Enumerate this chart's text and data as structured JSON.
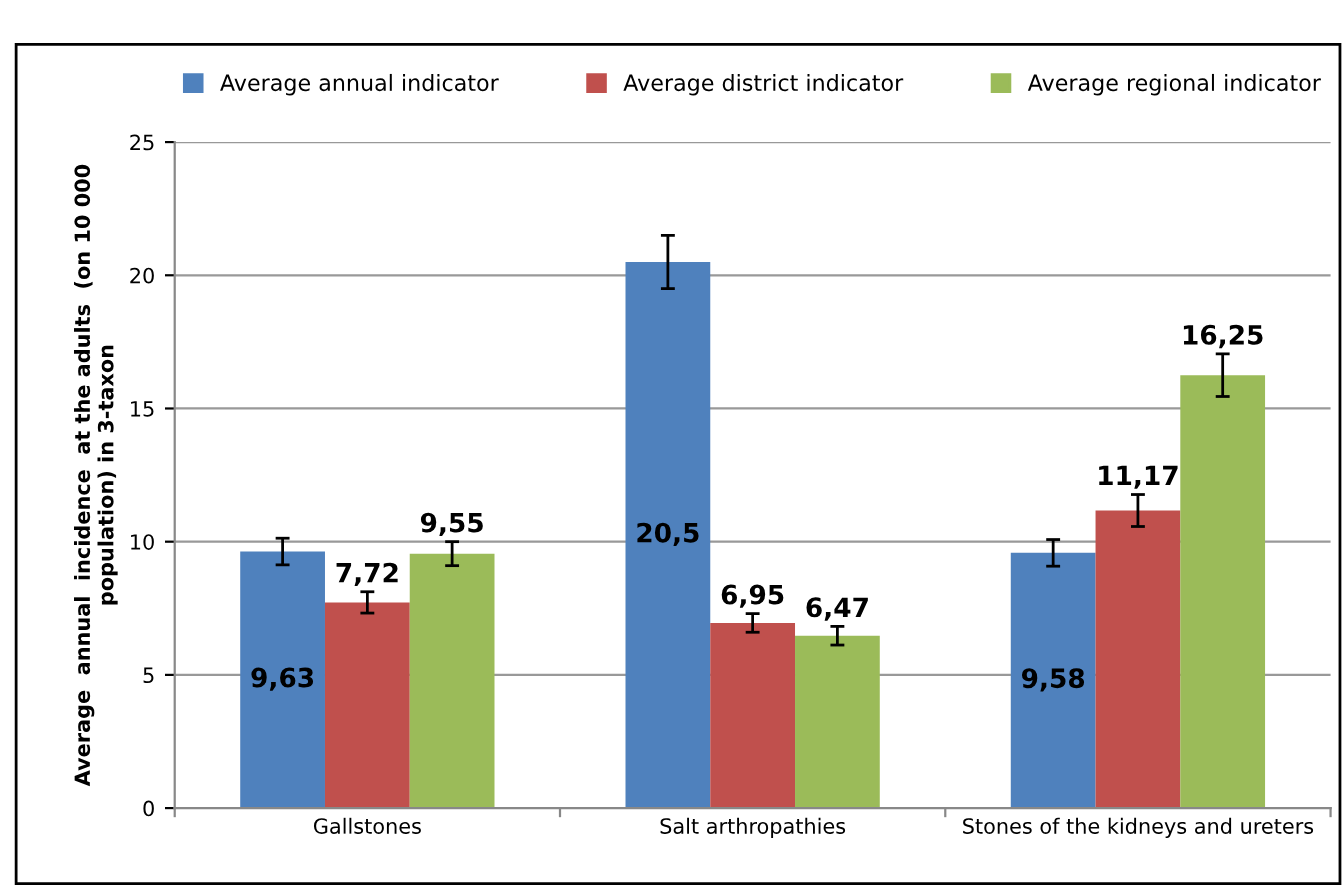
{
  "chart_data": {
    "type": "bar",
    "ylabel": "Average  annual  incidence  at the adults  (on 10 000\npopulation) in 3-taxon",
    "categories": [
      "Gallstones",
      "Salt arthropathies",
      "Stones of the kidneys and ureters"
    ],
    "series": [
      {
        "name": "Average annual indicator",
        "color": "#4f81bd",
        "values": [
          9.63,
          20.5,
          9.58
        ],
        "value_labels": [
          "9,63",
          "20,5",
          "9,58"
        ],
        "errors": [
          0.5,
          1.0,
          0.5
        ]
      },
      {
        "name": "Average district indicator",
        "color": "#c0504d",
        "values": [
          7.72,
          6.95,
          11.17
        ],
        "value_labels": [
          "7,72",
          "6,95",
          "11,17"
        ],
        "errors": [
          0.4,
          0.35,
          0.6
        ]
      },
      {
        "name": "Average regional indicator",
        "color": "#9bbb59",
        "values": [
          9.55,
          6.47,
          16.25
        ],
        "value_labels": [
          "9,55",
          "6,47",
          "16,25"
        ],
        "errors": [
          0.45,
          0.35,
          0.8
        ]
      }
    ],
    "ylim": [
      0,
      25
    ],
    "yticks": [
      0,
      5,
      10,
      15,
      20,
      25
    ],
    "grid": "y",
    "legend": "top"
  }
}
